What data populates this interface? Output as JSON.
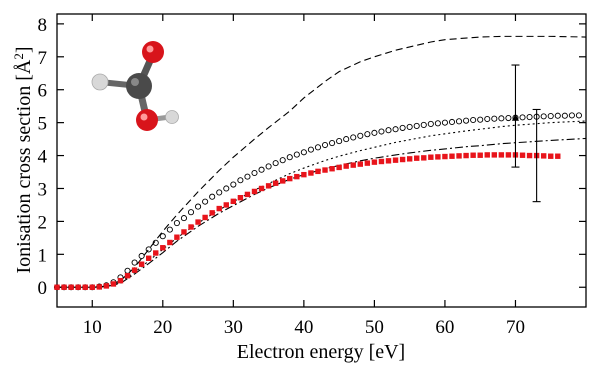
{
  "chart_data": {
    "type": "line",
    "title": "",
    "xlabel": "Electron energy [eV]",
    "ylabel": "Ionisation cross section [Å",
    "ylabel_sup": "2",
    "ylabel_end": "]",
    "xlim": [
      5,
      80
    ],
    "ylim": [
      -0.6,
      8.3
    ],
    "xticks": [
      10,
      20,
      30,
      40,
      50,
      60,
      70
    ],
    "yticks": [
      0,
      1,
      2,
      3,
      4,
      5,
      6,
      7,
      8
    ],
    "grid": false,
    "legend": "none",
    "series": [
      {
        "style": "dashed",
        "color": "#000000",
        "x": [
          5,
          10,
          12,
          14,
          16,
          18,
          20,
          22,
          25,
          28,
          30,
          33,
          35,
          38,
          40,
          43,
          45,
          48,
          50,
          53,
          55,
          58,
          60,
          63,
          65,
          68,
          70,
          75,
          80
        ],
        "y": [
          0,
          0,
          0.03,
          0.2,
          0.6,
          1.15,
          1.7,
          2.2,
          2.9,
          3.55,
          3.95,
          4.5,
          4.85,
          5.35,
          5.75,
          6.25,
          6.55,
          6.85,
          7.0,
          7.2,
          7.3,
          7.45,
          7.52,
          7.57,
          7.6,
          7.62,
          7.62,
          7.62,
          7.6
        ]
      },
      {
        "style": "circles",
        "color": "#000000",
        "x": [
          5,
          6,
          7,
          8,
          9,
          10,
          11,
          12,
          13,
          14,
          15,
          16,
          17,
          18,
          19,
          20,
          21,
          22,
          23,
          24,
          25,
          26,
          27,
          28,
          29,
          30,
          31,
          32,
          33,
          34,
          35,
          36,
          37,
          38,
          39,
          40,
          41,
          42,
          43,
          44,
          45,
          46,
          47,
          48,
          49,
          50,
          51,
          52,
          53,
          54,
          55,
          56,
          57,
          58,
          59,
          60,
          61,
          62,
          63,
          64,
          65,
          66,
          67,
          68,
          69,
          70,
          71,
          72,
          73,
          74,
          75,
          76,
          77,
          78,
          79,
          80
        ],
        "y": [
          0,
          0,
          0,
          0,
          0,
          0,
          0.02,
          0.06,
          0.15,
          0.3,
          0.5,
          0.75,
          0.95,
          1.15,
          1.35,
          1.55,
          1.75,
          1.95,
          2.1,
          2.28,
          2.45,
          2.6,
          2.75,
          2.88,
          3.0,
          3.12,
          3.25,
          3.36,
          3.47,
          3.57,
          3.67,
          3.77,
          3.86,
          3.95,
          4.03,
          4.1,
          4.18,
          4.25,
          4.32,
          4.38,
          4.44,
          4.5,
          4.55,
          4.6,
          4.65,
          4.69,
          4.73,
          4.77,
          4.8,
          4.84,
          4.87,
          4.9,
          4.93,
          4.96,
          4.98,
          5.0,
          5.02,
          5.04,
          5.06,
          5.08,
          5.09,
          5.11,
          5.12,
          5.13,
          5.14,
          5.15,
          5.16,
          5.17,
          5.18,
          5.19,
          5.2,
          5.21,
          5.21,
          5.22,
          5.22,
          5.23
        ]
      },
      {
        "style": "dotted",
        "color": "#000000",
        "x": [
          5,
          10,
          12,
          14,
          16,
          18,
          20,
          22,
          25,
          28,
          30,
          33,
          35,
          38,
          40,
          43,
          45,
          48,
          50,
          53,
          55,
          58,
          60,
          63,
          65,
          68,
          70,
          75,
          80
        ],
        "y": [
          0,
          0,
          0.02,
          0.15,
          0.45,
          0.8,
          1.15,
          1.5,
          1.95,
          2.35,
          2.6,
          2.95,
          3.15,
          3.45,
          3.62,
          3.85,
          3.98,
          4.15,
          4.25,
          4.4,
          4.48,
          4.6,
          4.66,
          4.75,
          4.8,
          4.88,
          4.92,
          5.0,
          5.05
        ]
      },
      {
        "style": "dashdot",
        "color": "#000000",
        "x": [
          5,
          10,
          12,
          14,
          16,
          18,
          20,
          22,
          25,
          28,
          30,
          33,
          35,
          38,
          40,
          43,
          45,
          48,
          50,
          53,
          55,
          58,
          60,
          63,
          65,
          68,
          70,
          75,
          80
        ],
        "y": [
          0,
          0,
          0.02,
          0.12,
          0.4,
          0.72,
          1.05,
          1.4,
          1.85,
          2.25,
          2.48,
          2.82,
          3.02,
          3.28,
          3.42,
          3.6,
          3.7,
          3.84,
          3.92,
          4.02,
          4.08,
          4.16,
          4.2,
          4.27,
          4.3,
          4.36,
          4.39,
          4.46,
          4.52
        ]
      },
      {
        "style": "red-squares",
        "color": "#e8141b",
        "x": [
          5,
          6,
          7,
          8,
          9,
          10,
          11,
          12,
          13,
          14,
          15,
          16,
          17,
          18,
          19,
          20,
          21,
          22,
          23,
          24,
          25,
          26,
          27,
          28,
          29,
          30,
          31,
          32,
          33,
          34,
          35,
          36,
          37,
          38,
          39,
          40,
          41,
          42,
          43,
          44,
          45,
          46,
          47,
          48,
          49,
          50,
          51,
          52,
          53,
          54,
          55,
          56,
          57,
          58,
          59,
          60,
          61,
          62,
          63,
          64,
          65,
          66,
          67,
          68,
          69,
          70,
          71,
          72,
          73,
          74,
          75,
          76
        ],
        "y": [
          0,
          0,
          0,
          0,
          0,
          0,
          0.01,
          0.04,
          0.1,
          0.2,
          0.35,
          0.52,
          0.7,
          0.88,
          1.04,
          1.2,
          1.36,
          1.52,
          1.68,
          1.83,
          1.98,
          2.12,
          2.26,
          2.39,
          2.5,
          2.61,
          2.72,
          2.82,
          2.91,
          3.0,
          3.08,
          3.16,
          3.23,
          3.3,
          3.36,
          3.42,
          3.47,
          3.52,
          3.56,
          3.6,
          3.64,
          3.68,
          3.71,
          3.74,
          3.77,
          3.8,
          3.82,
          3.84,
          3.86,
          3.88,
          3.9,
          3.92,
          3.93,
          3.95,
          3.96,
          3.97,
          3.98,
          3.99,
          4.0,
          4.01,
          4.01,
          4.02,
          4.02,
          4.02,
          4.02,
          4.02,
          4.01,
          4.0,
          4.0,
          3.99,
          3.98,
          3.98
        ]
      }
    ],
    "error_bars": [
      {
        "x": 70,
        "y": 5.15,
        "low": 3.65,
        "high": 6.75,
        "marker": "triangle"
      },
      {
        "x": 73,
        "y": 4.05,
        "low": 2.6,
        "high": 5.4,
        "marker": "none"
      }
    ],
    "inset": "molecule"
  }
}
